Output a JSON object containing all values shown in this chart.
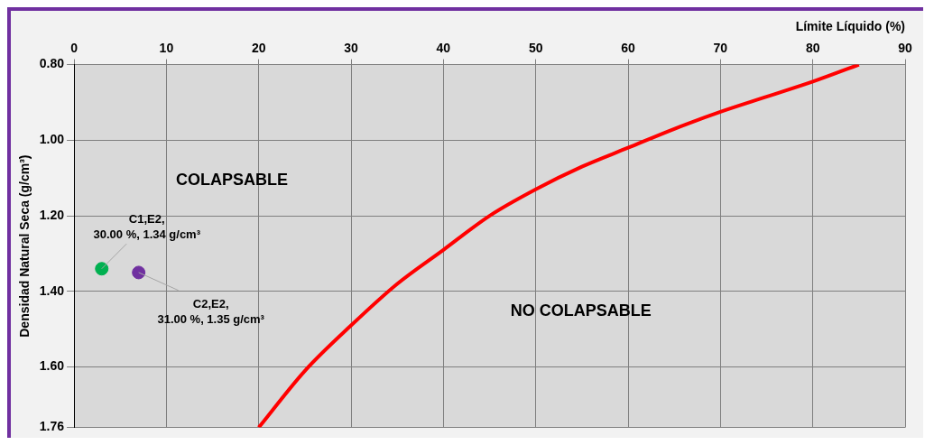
{
  "chart_data": {
    "type": "line",
    "xlabel": "Límite Líquido (%)",
    "ylabel": "Densidad Natural Seca (g/cm³)",
    "xlim": [
      0,
      90
    ],
    "xticks": [
      0,
      10,
      20,
      30,
      40,
      50,
      60,
      70,
      80,
      90
    ],
    "ylim": [
      1.76,
      0.8
    ],
    "yticks": [
      {
        "value": 0.8,
        "label": "0.80"
      },
      {
        "value": 1,
        "label": "1.00"
      },
      {
        "value": 1.2,
        "label": "1.20"
      },
      {
        "value": 1.4,
        "label": "1.40"
      },
      {
        "value": 1.6,
        "label": "1.60"
      },
      1.76
    ],
    "grid": true,
    "legend": false,
    "series": [
      {
        "type": "line",
        "color": "#ff0000",
        "x": [
          20,
          25,
          30,
          35,
          40,
          45,
          50,
          55,
          60,
          65,
          70,
          75,
          80,
          85
        ],
        "values": [
          1.76,
          1.61,
          1.49,
          1.38,
          1.29,
          1.2,
          1.13,
          1.07,
          1.02,
          0.97,
          0.925,
          0.885,
          0.845,
          0.8
        ]
      },
      {
        "type": "scatter",
        "marker": "circle",
        "x": [
          3,
          7
        ],
        "values": [
          1.34,
          1.35
        ],
        "colors": [
          "#00b050",
          "#7030a0"
        ]
      }
    ],
    "annotations": [
      "COLAPSABLE",
      "NO COLAPSABLE",
      {
        "text": "C1,E2,\n30.00 %, 1.34 g/cm³",
        "x": 3,
        "y": 1.34
      },
      {
        "text": "C2,E2,\n31.00 %, 1.35 g/cm³",
        "x": 7,
        "y": 1.35
      }
    ]
  }
}
